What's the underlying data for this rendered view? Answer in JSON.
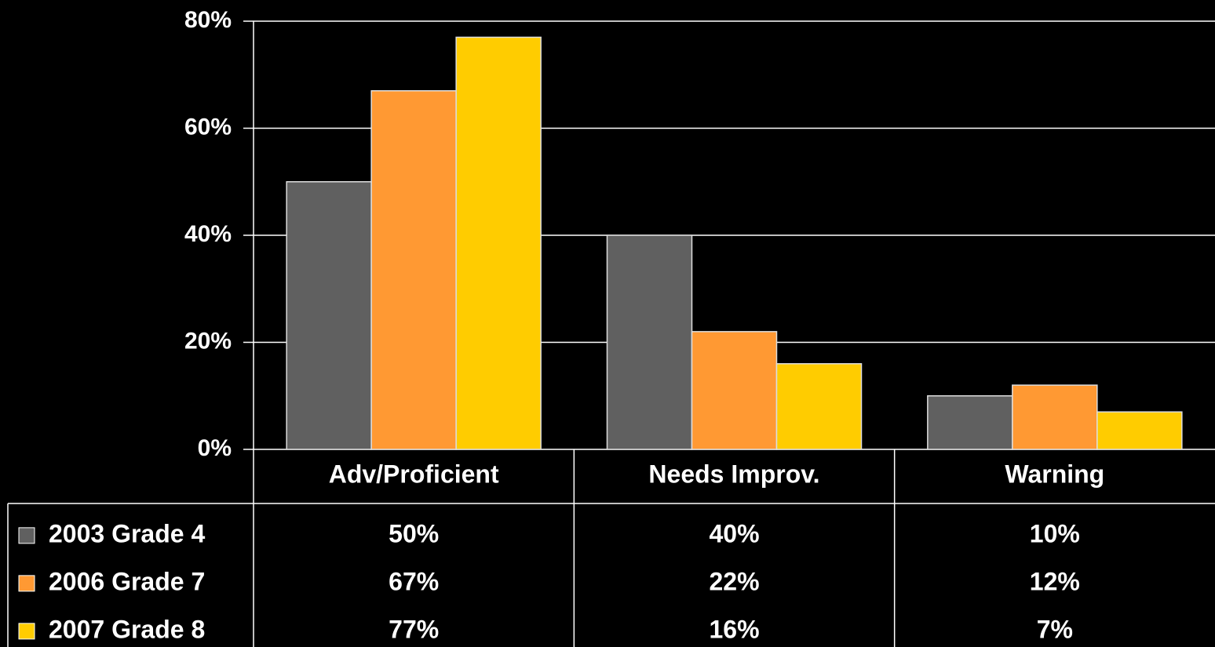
{
  "chart_data": {
    "type": "bar",
    "categories": [
      "Adv/Proficient",
      "Needs Improv.",
      "Warning"
    ],
    "series": [
      {
        "name": "2003 Grade 4",
        "color": "#606060",
        "values": [
          50,
          40,
          10
        ],
        "value_labels": [
          "50%",
          "40%",
          "10%"
        ]
      },
      {
        "name": "2006 Grade 7",
        "color": "#ff9933",
        "values": [
          67,
          22,
          12
        ],
        "value_labels": [
          "67%",
          "22%",
          "12%"
        ]
      },
      {
        "name": "2007 Grade 8",
        "color": "#ffcc00",
        "values": [
          77,
          16,
          7
        ],
        "value_labels": [
          "77%",
          "16%",
          "7%"
        ]
      }
    ],
    "ylim": [
      0,
      80
    ],
    "yticks": [
      {
        "value": 0,
        "label": "0%"
      },
      {
        "value": 20,
        "label": "20%"
      },
      {
        "value": 40,
        "label": "40%"
      },
      {
        "value": 60,
        "label": "60%"
      },
      {
        "value": 80,
        "label": "80%"
      }
    ],
    "grid": true
  }
}
